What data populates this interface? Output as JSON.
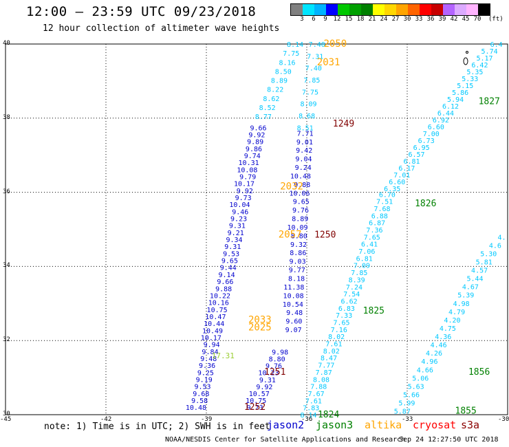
{
  "header": {
    "title": "12:00 – 23:59 UTC 09/23/2018",
    "subtitle": "12 hour collection of altimeter wave heights"
  },
  "legend": {
    "unit": "(ft)",
    "labels": [
      "3",
      "6",
      "9",
      "12",
      "15",
      "18",
      "21",
      "24",
      "27",
      "30",
      "33",
      "36",
      "39",
      "42",
      "45",
      "70"
    ],
    "colors": [
      "#808080",
      "#00e5ff",
      "#00b4ff",
      "#0000ff",
      "#00c800",
      "#00a000",
      "#008000",
      "#ffff00",
      "#ffd700",
      "#ffa500",
      "#ff6400",
      "#ff0000",
      "#c80000",
      "#b464ff",
      "#dcaaff",
      "#ffb4ff",
      "#000000"
    ]
  },
  "axes": {
    "lat_labels": [
      "40",
      "38",
      "36",
      "34",
      "32",
      "30"
    ],
    "lon_labels": [
      "-45",
      "-42",
      "-39",
      "-36",
      "-33",
      "-30"
    ]
  },
  "note": "note: 1) Time is in UTC; 2) SWH is in feet",
  "satellites": [
    {
      "name": "jason2",
      "color": "#0000cd"
    },
    {
      "name": "jason3",
      "color": "#008000"
    },
    {
      "name": "altika",
      "color": "#ffa500"
    },
    {
      "name": "cryosat",
      "color": "#ff0000"
    },
    {
      "name": "s3a",
      "color": "#8b0000"
    }
  ],
  "footer": {
    "credit": "NOAA/NESDIS Center for Satellite Applications and Research",
    "timestamp": "Sep 24 12:27:50 UTC 2018"
  },
  "colors": {
    "light": "#00c8ff",
    "mid": "#00a0e6",
    "blue": "#0000cd",
    "green": "#008000",
    "orange": "#ffa500",
    "darkred": "#800000",
    "yellowgreen": "#9acd32"
  },
  "tracks": [
    {
      "name": "track-a-light",
      "color": "light",
      "start": [
        -36.1,
        40.0
      ],
      "end": [
        -37.05,
        38.05
      ],
      "values": [
        "8.14",
        "7.75",
        "8.16",
        "8.50",
        "8.89",
        "8.22",
        "8.62",
        "8.52",
        "8.77"
      ]
    },
    {
      "name": "track-a-blue",
      "color": "blue",
      "start": [
        -37.2,
        37.75
      ],
      "end": [
        -39.0,
        30.2
      ],
      "values": [
        "9.66",
        "9.92",
        "9.89",
        "9.86",
        "9.74",
        "10.31",
        "10.08",
        "9.79",
        "10.17",
        "9.92",
        "9.73",
        "10.04",
        "9.46",
        "9.23",
        "9.31",
        "9.21",
        "9.34",
        "9.31",
        "9.53",
        "9.65",
        "9.44",
        "9.14",
        "9.66",
        "9.88",
        "10.22",
        "10.16",
        "10.75",
        "10.47",
        "10.44",
        "10.49",
        "10.17",
        "9.94",
        "9.84",
        "9.48",
        "9.36",
        "9.25",
        "9.19",
        "9.53",
        "9.68",
        "9.58",
        "10.48"
      ]
    },
    {
      "name": "track-b-light",
      "color": "light",
      "start": [
        -35.45,
        40.0
      ],
      "end": [
        -35.8,
        37.75
      ],
      "values": [
        "7.40",
        "7.31",
        "7.40",
        "7.85",
        "7.75",
        "8.09",
        "8.68",
        "8.51"
      ]
    },
    {
      "name": "track-b-blue",
      "color": "blue",
      "start": [
        -35.8,
        37.6
      ],
      "end": [
        -36.15,
        32.3
      ],
      "values": [
        "7.71",
        "9.01",
        "9.42",
        "9.04",
        "9.24",
        "10.48",
        "9.88",
        "10.06",
        "9.65",
        "9.76",
        "8.89",
        "10.09",
        "8.80",
        "9.32",
        "8.86",
        "9.03",
        "9.77",
        "8.18",
        "11.38",
        "10.08",
        "10.54",
        "9.48",
        "9.60",
        "9.07"
      ]
    },
    {
      "name": "track-c-blue",
      "color": "blue",
      "start": [
        -36.55,
        31.7
      ],
      "end": [
        -37.3,
        30.2
      ],
      "values": [
        "9.98",
        "8.80",
        "9.76",
        "10.23",
        "9.31",
        "9.92",
        "10.57",
        "10.75",
        "9.73"
      ]
    },
    {
      "name": "track-d-light",
      "color": "light",
      "start": [
        -33.35,
        35.95
      ],
      "end": [
        -35.7,
        30.0
      ],
      "values": [
        "6.70",
        "7.51",
        "7.68",
        "6.88",
        "6.87",
        "7.36",
        "7.65",
        "6.41",
        "7.06",
        "6.81",
        "7.09",
        "7.85",
        "8.39",
        "7.24",
        "7.54",
        "6.62",
        "6.83",
        "7.33",
        "7.65",
        "7.16",
        "8.02",
        "7.61",
        "8.02",
        "8.47",
        "7.77",
        "7.87",
        "8.08",
        "7.88",
        "7.67",
        "7.61",
        "7.83",
        "8.14"
      ]
    },
    {
      "name": "track-e-light",
      "color": "light",
      "start": [
        -30.15,
        40.0
      ],
      "end": [
        -33.2,
        36.1
      ],
      "values": [
        "6.4",
        "5.74",
        "5.17",
        "6.42",
        "5.35",
        "5.33",
        "5.15",
        "5.86",
        "5.94",
        "6.12",
        "6.44",
        "6.92",
        "6.60",
        "7.00",
        "6.73",
        "6.95",
        "6.57",
        "6.81",
        "6.17",
        "7.01",
        "6.60",
        "6.35"
      ]
    },
    {
      "name": "track-f-light",
      "color": "light",
      "start": [
        -30.05,
        34.8
      ],
      "end": [
        -32.9,
        30.1
      ],
      "values": [
        "4.",
        "4.6",
        "5.30",
        "5.81",
        "4.57",
        "5.44",
        "4.67",
        "5.39",
        "4.98",
        "4.79",
        "4.20",
        "4.75",
        "4.36",
        "4.46",
        "4.26",
        "4.96",
        "4.66",
        "5.06",
        "5.63",
        "5.66",
        "5.99",
        "5.87"
      ]
    }
  ],
  "labels": [
    {
      "text": "2050",
      "color": "orange",
      "lon": -35.15,
      "lat": 40.0,
      "size": 14
    },
    {
      "text": "2031",
      "color": "orange",
      "lon": -35.35,
      "lat": 39.5,
      "size": 14
    },
    {
      "text": "1249",
      "color": "darkred",
      "lon": -34.9,
      "lat": 37.85,
      "size": 13
    },
    {
      "text": "1827",
      "color": "green",
      "lon": -30.55,
      "lat": 38.45,
      "size": 13
    },
    {
      "text": "2032",
      "color": "orange",
      "lon": -36.45,
      "lat": 36.15,
      "size": 14
    },
    {
      "text": "1826",
      "color": "green",
      "lon": -32.45,
      "lat": 35.7,
      "size": 13
    },
    {
      "text": "2057",
      "color": "orange",
      "lon": -36.5,
      "lat": 34.85,
      "size": 14
    },
    {
      "text": "1250",
      "color": "darkred",
      "lon": -35.45,
      "lat": 34.85,
      "size": 13
    },
    {
      "text": "1825",
      "color": "green",
      "lon": -34.0,
      "lat": 32.8,
      "size": 13
    },
    {
      "text": "2033",
      "color": "orange",
      "lon": -37.4,
      "lat": 32.55,
      "size": 14
    },
    {
      "text": "2025",
      "color": "orange",
      "lon": -37.4,
      "lat": 32.35,
      "size": 14
    },
    {
      "text": "17.31",
      "color": "yellowgreen",
      "lon": -38.5,
      "lat": 31.6,
      "size": 11
    },
    {
      "text": "1251",
      "color": "darkred",
      "lon": -36.95,
      "lat": 31.15,
      "size": 13
    },
    {
      "text": "1856",
      "color": "green",
      "lon": -30.85,
      "lat": 31.15,
      "size": 13
    },
    {
      "text": "1252",
      "color": "darkred",
      "lon": -37.55,
      "lat": 30.2,
      "size": 13
    },
    {
      "text": "1824",
      "color": "green",
      "lon": -35.35,
      "lat": 30.0,
      "size": 13
    },
    {
      "text": "1855",
      "color": "green",
      "lon": -31.25,
      "lat": 30.1,
      "size": 13
    }
  ]
}
